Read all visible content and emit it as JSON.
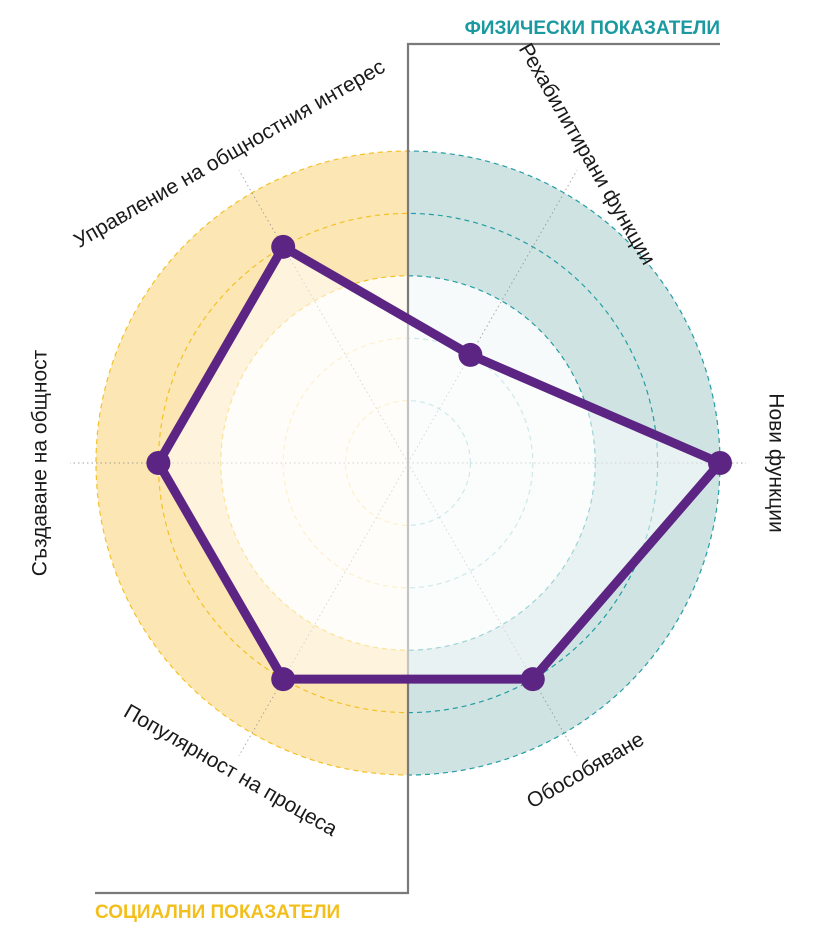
{
  "chart_data": {
    "type": "radar",
    "title": "",
    "axes": [
      "Рехабилитирани функции",
      "Нови функции",
      "Обособяване",
      "Популярност на процеса",
      "Създаване на общност",
      "Управление на общностния интерес"
    ],
    "axis_angles_deg": [
      -60,
      0,
      60,
      120,
      180,
      240
    ],
    "levels": 5,
    "range": [
      0,
      5
    ],
    "series": [
      {
        "values": [
          2,
          5,
          4,
          4,
          4,
          4
        ]
      }
    ],
    "groups": [
      {
        "label": "ФИЗИЧЕСКИ ПОКАЗАТЕЛИ",
        "side": "right",
        "color": "#1a9aa0"
      },
      {
        "label": "СОЦИАЛНИ ПОКАЗАТЕЛИ",
        "side": "left",
        "color": "#f2bf1d"
      }
    ],
    "colors": {
      "series": "#5c2483",
      "physical_band": "#cfe3e2",
      "physical_dash": "#1a9aa0",
      "social_band": "#fce7b4",
      "social_dash": "#f2bf1d",
      "divider": "#7a7a7a"
    }
  }
}
